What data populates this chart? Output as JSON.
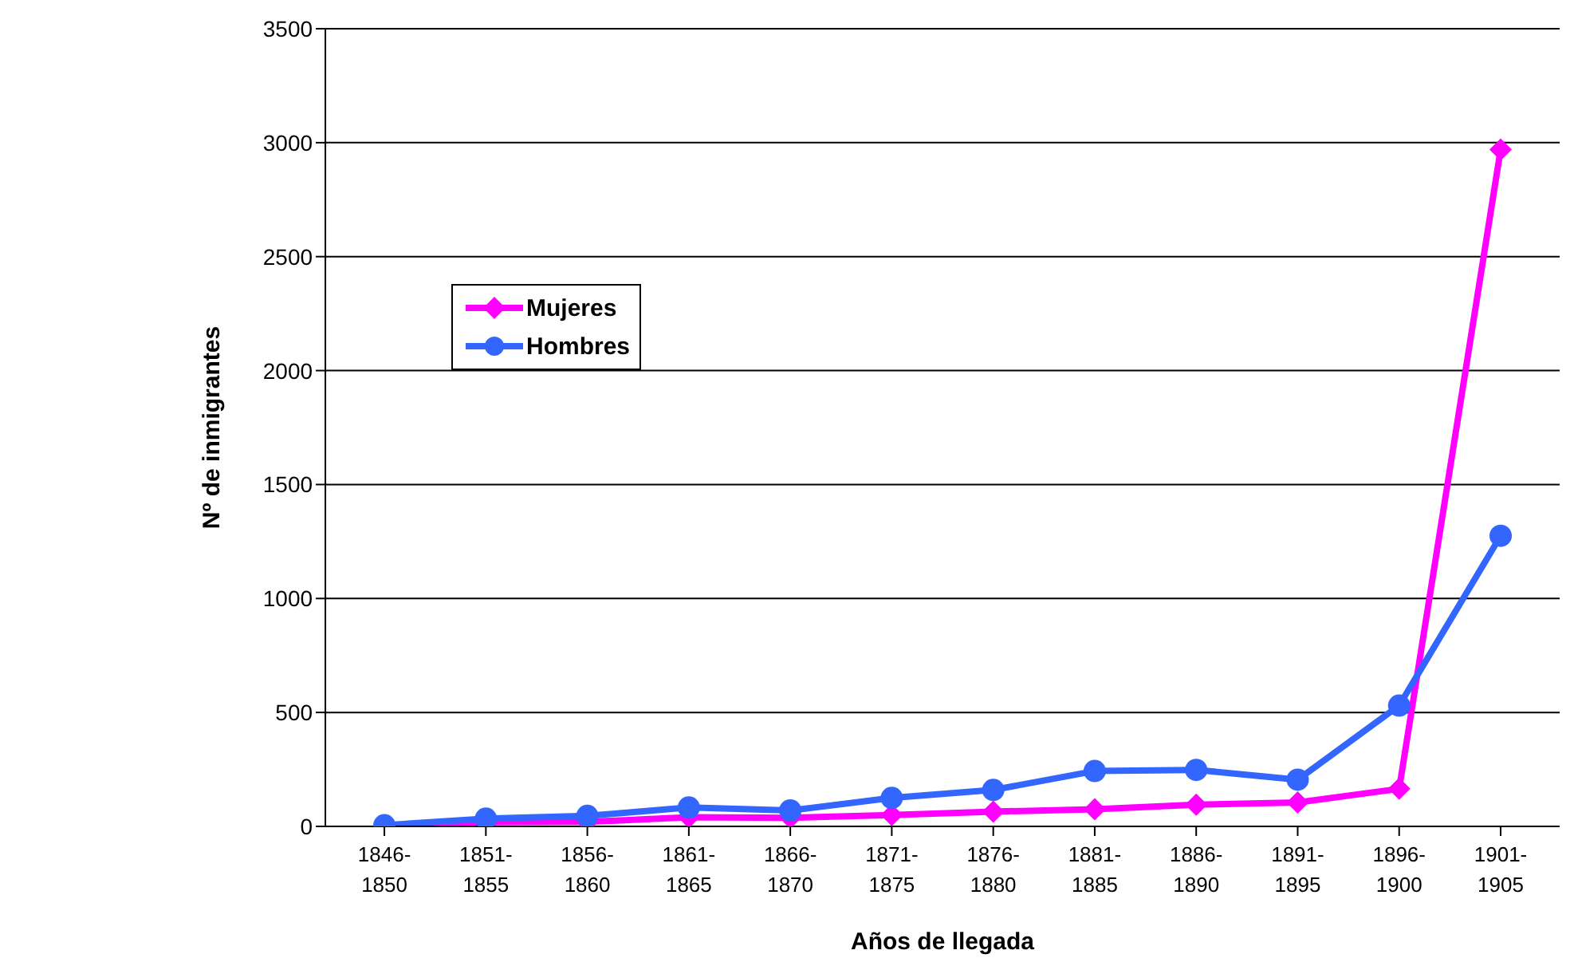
{
  "chart_data": {
    "type": "line",
    "xlabel": "Años de llegada",
    "ylabel": "Nº de inmigrantes",
    "categories": [
      "1846-1850",
      "1851-1855",
      "1856-1860",
      "1861-1865",
      "1866-1870",
      "1871-1875",
      "1876-1880",
      "1881-1885",
      "1886-1890",
      "1891-1895",
      "1896-1900",
      "1901-1905"
    ],
    "series": [
      {
        "name": "Mujeres",
        "color": "#ff00ff",
        "marker": "diamond",
        "values": [
          5,
          18,
          20,
          40,
          38,
          50,
          65,
          75,
          95,
          105,
          165,
          2970
        ]
      },
      {
        "name": "Hombres",
        "color": "#3366ff",
        "marker": "circle",
        "values": [
          5,
          34,
          46,
          83,
          70,
          125,
          160,
          243,
          248,
          205,
          530,
          1275
        ]
      }
    ],
    "ylim": [
      0,
      3500
    ],
    "yticks": [
      0,
      500,
      1000,
      1500,
      2000,
      2500,
      3000,
      3500
    ],
    "grid": "y",
    "legend": "top left"
  }
}
